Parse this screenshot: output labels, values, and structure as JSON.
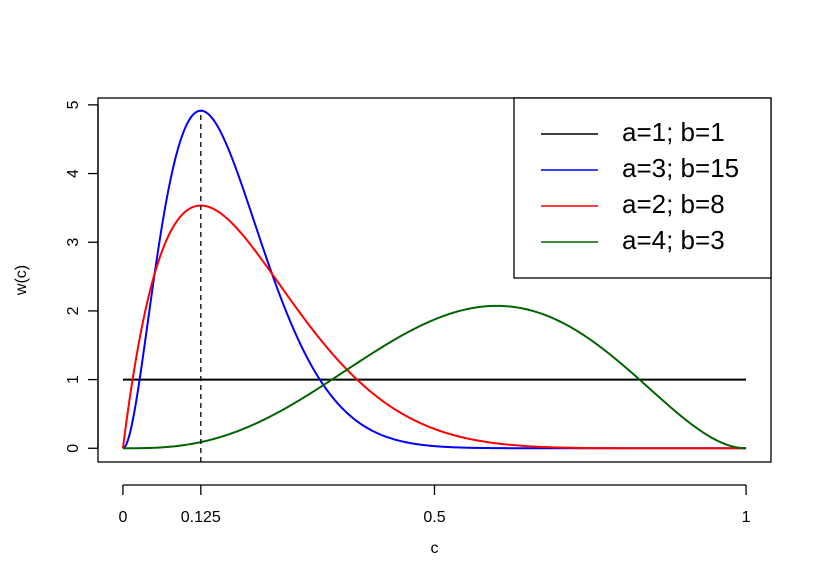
{
  "chart_data": {
    "type": "line",
    "title": "",
    "xlabel": "c",
    "ylabel": "w(c)",
    "xlim": [
      -0.04,
      1.04
    ],
    "ylim": [
      -0.2,
      5.1
    ],
    "x_ticks": [
      0,
      0.125,
      0.5,
      1
    ],
    "x_tick_labels": [
      "0",
      "0.125",
      "0.5",
      "1"
    ],
    "y_ticks": [
      0,
      1,
      2,
      3,
      4,
      5
    ],
    "y_tick_labels": [
      "0",
      "1",
      "2",
      "3",
      "4",
      "5"
    ],
    "grid": false,
    "legend_position": "top-right",
    "vline": {
      "x": 0.125,
      "style": "dashed",
      "color": "#000000"
    },
    "series": [
      {
        "name": "a=1; b=1",
        "color": "#000000",
        "alpha": 1,
        "beta": 1
      },
      {
        "name": "a=3; b=15",
        "color": "#0000ff",
        "alpha": 3,
        "beta": 15
      },
      {
        "name": "a=2; b=8",
        "color": "#ff0000",
        "alpha": 2,
        "beta": 8
      },
      {
        "name": "a=4; b=3",
        "color": "#006400",
        "alpha": 4,
        "beta": 3
      }
    ]
  }
}
